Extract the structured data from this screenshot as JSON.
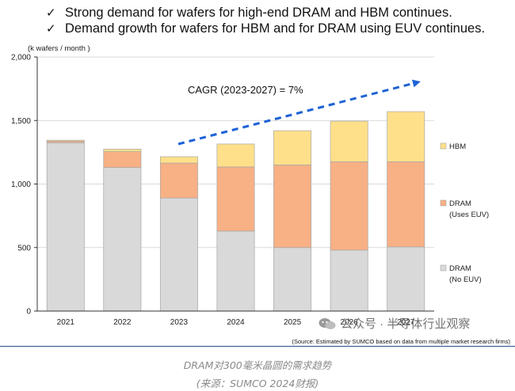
{
  "bullets": [
    {
      "mark": "✓",
      "text": "Strong demand for wafers for high-end DRAM and HBM continues."
    },
    {
      "mark": "✓",
      "text": "Demand growth for wafers for HBM and for DRAM using EUV continues."
    }
  ],
  "chart_data": {
    "type": "bar",
    "stacked": true,
    "y_unit": "(k wafers / month )",
    "ylim": [
      0,
      2000
    ],
    "yticks": [
      0,
      500,
      1000,
      1500,
      2000
    ],
    "ytick_labels": [
      "0",
      "500",
      "1,000",
      "1,500",
      "2,000"
    ],
    "categories": [
      "2021",
      "2022",
      "2023",
      "2024",
      "2025",
      "2026",
      "2027"
    ],
    "series": [
      {
        "name": "DRAM (No EUV)",
        "legend": [
          "DRAM",
          "(No EUV)"
        ],
        "color": "#d9d9d9",
        "values": [
          1325,
          1130,
          890,
          630,
          500,
          480,
          505
        ]
      },
      {
        "name": "DRAM (Uses EUV)",
        "legend": [
          "DRAM",
          "(Uses EUV)"
        ],
        "color": "#f8b085",
        "values": [
          12,
          125,
          275,
          505,
          650,
          695,
          670
        ]
      },
      {
        "name": "HBM",
        "legend": [
          "HBM"
        ],
        "color": "#ffe08a",
        "values": [
          8,
          20,
          50,
          180,
          270,
          320,
          395
        ]
      }
    ],
    "annotation": "CAGR (2023-2027) = 7%",
    "source": "(Source: Estimated by SUMCO based on data from multiple market research firms)"
  },
  "watermark": "公众号 · 半导体行业观察",
  "caption": {
    "line1": "DRAM对300毫米晶圆的需求趋势",
    "line2": "(来源：SUMCO 2024财报)"
  },
  "colors": {
    "arrow": "#1f63d6",
    "rule": "#2d4f86"
  }
}
